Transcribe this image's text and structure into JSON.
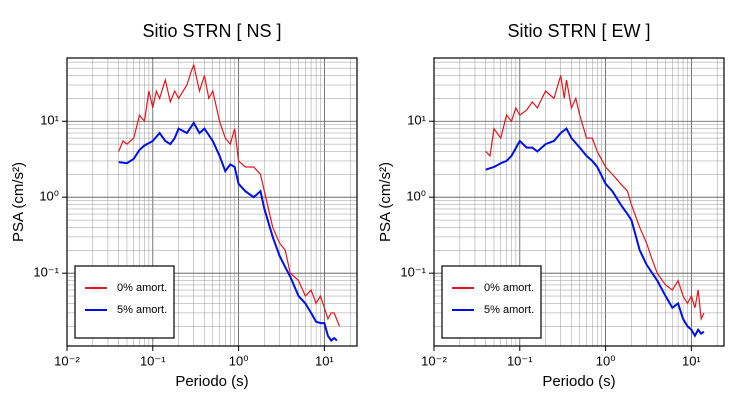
{
  "chart_data": [
    {
      "type": "line",
      "title": "Sitio STRN [ NS ]",
      "xlabel": "Periodo (s)",
      "ylabel": "PSA (cm/s²)",
      "xscale": "log",
      "yscale": "log",
      "grid": true,
      "legend": "lower left",
      "xlim": [
        0.01,
        24
      ],
      "ylim": [
        0.011,
        68
      ],
      "xticks": [
        {
          "value": 0.01,
          "label": "10⁻²"
        },
        {
          "value": 0.1,
          "label": "10⁻¹"
        },
        {
          "value": 1,
          "label": "10⁰"
        },
        {
          "value": 10,
          "label": "10¹"
        }
      ],
      "yticks": [
        {
          "value": 0.1,
          "label": "10⁻¹"
        },
        {
          "value": 1,
          "label": "10⁰"
        },
        {
          "value": 10,
          "label": "10¹"
        }
      ],
      "series": [
        {
          "name": "0% amort.",
          "color": "#e8141c",
          "x": [
            0.04,
            0.045,
            0.05,
            0.06,
            0.07,
            0.08,
            0.09,
            0.1,
            0.11,
            0.12,
            0.14,
            0.16,
            0.18,
            0.2,
            0.25,
            0.28,
            0.3,
            0.35,
            0.4,
            0.45,
            0.5,
            0.6,
            0.7,
            0.8,
            0.9,
            1.0,
            1.2,
            1.5,
            1.8,
            2.0,
            2.5,
            3,
            3.5,
            4,
            5,
            6,
            7,
            8,
            9,
            10,
            11,
            12,
            13,
            15
          ],
          "values": [
            4,
            5.5,
            5,
            6,
            12,
            10,
            25,
            15,
            25,
            20,
            35,
            18,
            25,
            20,
            30,
            45,
            55,
            25,
            40,
            20,
            25,
            10,
            6,
            5,
            8,
            3,
            2.5,
            2.5,
            2,
            1.2,
            0.4,
            0.25,
            0.2,
            0.1,
            0.08,
            0.05,
            0.06,
            0.04,
            0.05,
            0.035,
            0.025,
            0.03,
            0.03,
            0.02
          ]
        },
        {
          "name": "5% amort.",
          "color": "#0010e8",
          "x": [
            0.04,
            0.05,
            0.06,
            0.07,
            0.08,
            0.1,
            0.12,
            0.14,
            0.16,
            0.18,
            0.2,
            0.25,
            0.3,
            0.35,
            0.4,
            0.5,
            0.6,
            0.7,
            0.8,
            0.9,
            1.0,
            1.2,
            1.5,
            1.8,
            2.0,
            2.5,
            3,
            3.5,
            4,
            5,
            6,
            7,
            8,
            9,
            10,
            11,
            12,
            13,
            14
          ],
          "values": [
            2.9,
            2.8,
            3.2,
            4.2,
            4.8,
            5.5,
            7,
            5.5,
            5,
            6,
            8,
            7,
            9.5,
            7,
            8,
            5.5,
            3.5,
            2.2,
            2.7,
            2.5,
            1.5,
            1.2,
            1.0,
            1.2,
            0.7,
            0.3,
            0.17,
            0.12,
            0.09,
            0.05,
            0.04,
            0.03,
            0.023,
            0.022,
            0.022,
            0.015,
            0.013,
            0.014,
            0.013
          ]
        }
      ]
    },
    {
      "type": "line",
      "title": "Sitio STRN [ EW ]",
      "xlabel": "Periodo (s)",
      "ylabel": "PSA (cm/s²)",
      "xscale": "log",
      "yscale": "log",
      "grid": true,
      "legend": "lower left",
      "xlim": [
        0.01,
        24
      ],
      "ylim": [
        0.011,
        68
      ],
      "xticks": [
        {
          "value": 0.01,
          "label": "10⁻²"
        },
        {
          "value": 0.1,
          "label": "10⁻¹"
        },
        {
          "value": 1,
          "label": "10⁰"
        },
        {
          "value": 10,
          "label": "10¹"
        }
      ],
      "yticks": [
        {
          "value": 0.1,
          "label": "10⁻¹"
        },
        {
          "value": 1,
          "label": "10⁰"
        },
        {
          "value": 10,
          "label": "10¹"
        }
      ],
      "series": [
        {
          "name": "0% amort.",
          "color": "#e8141c",
          "x": [
            0.04,
            0.045,
            0.05,
            0.06,
            0.07,
            0.08,
            0.09,
            0.1,
            0.12,
            0.14,
            0.16,
            0.2,
            0.25,
            0.3,
            0.33,
            0.35,
            0.4,
            0.45,
            0.5,
            0.6,
            0.7,
            0.8,
            1.0,
            1.2,
            1.5,
            1.8,
            2.0,
            2.5,
            3,
            3.5,
            4,
            5,
            6,
            7,
            8,
            9,
            10,
            11,
            12,
            13,
            14
          ],
          "values": [
            4,
            3.5,
            8,
            6,
            12,
            10,
            15,
            12,
            14,
            18,
            15,
            25,
            20,
            40,
            20,
            35,
            15,
            20,
            12,
            6,
            6,
            4,
            2.5,
            2,
            1.5,
            1.2,
            0.8,
            0.4,
            0.25,
            0.15,
            0.1,
            0.07,
            0.06,
            0.08,
            0.05,
            0.04,
            0.05,
            0.035,
            0.06,
            0.025,
            0.03
          ]
        },
        {
          "name": "5% amort.",
          "color": "#0010e8",
          "x": [
            0.04,
            0.05,
            0.06,
            0.07,
            0.08,
            0.1,
            0.12,
            0.14,
            0.16,
            0.2,
            0.25,
            0.3,
            0.35,
            0.4,
            0.5,
            0.6,
            0.7,
            0.8,
            1.0,
            1.2,
            1.5,
            1.8,
            2.0,
            2.5,
            3,
            3.5,
            4,
            5,
            6,
            7,
            8,
            9,
            10,
            11,
            12,
            13,
            14
          ],
          "values": [
            2.3,
            2.5,
            2.8,
            3,
            3.5,
            5.5,
            4.5,
            4.5,
            4,
            5,
            5.5,
            7,
            8,
            6,
            4.5,
            3.5,
            3,
            2.5,
            1.5,
            1.2,
            0.8,
            0.6,
            0.5,
            0.2,
            0.13,
            0.1,
            0.08,
            0.05,
            0.035,
            0.04,
            0.025,
            0.02,
            0.018,
            0.015,
            0.018,
            0.016,
            0.017
          ]
        }
      ]
    }
  ]
}
